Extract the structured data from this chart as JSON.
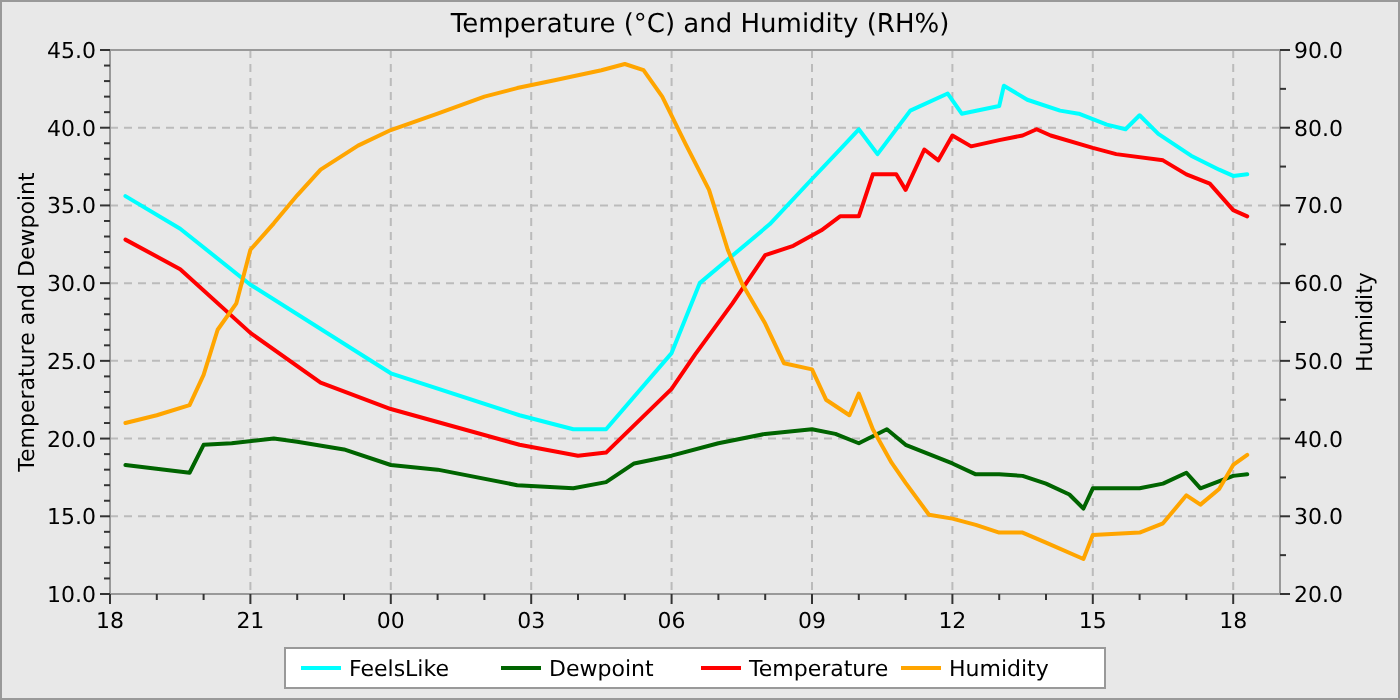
{
  "chart_data": {
    "type": "line",
    "title": "Temperature (°C) and Humidity (RH%)",
    "ylabel": "Temperature and Dewpoint",
    "y2label": "Humidity",
    "xlim": [
      18,
      43
    ],
    "xticks": [
      {
        "value": 18,
        "label": "18"
      },
      {
        "value": 19,
        "label": null
      },
      {
        "value": 20,
        "label": null
      },
      {
        "value": 21,
        "label": "21"
      },
      {
        "value": 22,
        "label": null
      },
      {
        "value": 23,
        "label": null
      },
      {
        "value": 24,
        "label": "00"
      },
      {
        "value": 25,
        "label": null
      },
      {
        "value": 26,
        "label": null
      },
      {
        "value": 27,
        "label": "03"
      },
      {
        "value": 28,
        "label": null
      },
      {
        "value": 29,
        "label": null
      },
      {
        "value": 30,
        "label": "06"
      },
      {
        "value": 31,
        "label": null
      },
      {
        "value": 32,
        "label": null
      },
      {
        "value": 33,
        "label": "09"
      },
      {
        "value": 34,
        "label": null
      },
      {
        "value": 35,
        "label": null
      },
      {
        "value": 36,
        "label": "12"
      },
      {
        "value": 37,
        "label": null
      },
      {
        "value": 38,
        "label": null
      },
      {
        "value": 39,
        "label": "15"
      },
      {
        "value": 40,
        "label": null
      },
      {
        "value": 41,
        "label": null
      },
      {
        "value": 42,
        "label": "18"
      }
    ],
    "ylim": [
      10,
      45
    ],
    "yticks": [
      {
        "value": 10,
        "label": "10.0"
      },
      {
        "value": 11,
        "label": null
      },
      {
        "value": 12,
        "label": null
      },
      {
        "value": 13,
        "label": null
      },
      {
        "value": 14,
        "label": null
      },
      {
        "value": 15,
        "label": "15.0"
      },
      {
        "value": 16,
        "label": null
      },
      {
        "value": 17,
        "label": null
      },
      {
        "value": 18,
        "label": null
      },
      {
        "value": 19,
        "label": null
      },
      {
        "value": 20,
        "label": "20.0"
      },
      {
        "value": 21,
        "label": null
      },
      {
        "value": 22,
        "label": null
      },
      {
        "value": 23,
        "label": null
      },
      {
        "value": 24,
        "label": null
      },
      {
        "value": 25,
        "label": "25.0"
      },
      {
        "value": 26,
        "label": null
      },
      {
        "value": 27,
        "label": null
      },
      {
        "value": 28,
        "label": null
      },
      {
        "value": 29,
        "label": null
      },
      {
        "value": 30,
        "label": "30.0"
      },
      {
        "value": 31,
        "label": null
      },
      {
        "value": 32,
        "label": null
      },
      {
        "value": 33,
        "label": null
      },
      {
        "value": 34,
        "label": null
      },
      {
        "value": 35,
        "label": "35.0"
      },
      {
        "value": 36,
        "label": null
      },
      {
        "value": 37,
        "label": null
      },
      {
        "value": 38,
        "label": null
      },
      {
        "value": 39,
        "label": null
      },
      {
        "value": 40,
        "label": "40.0"
      },
      {
        "value": 41,
        "label": null
      },
      {
        "value": 42,
        "label": null
      },
      {
        "value": 43,
        "label": null
      },
      {
        "value": 44,
        "label": null
      },
      {
        "value": 45,
        "label": "45.0"
      }
    ],
    "y2lim": [
      20,
      90
    ],
    "y2ticks": [
      {
        "value": 20,
        "label": "20.0"
      },
      {
        "value": 25,
        "label": null
      },
      {
        "value": 30,
        "label": "30.0"
      },
      {
        "value": 35,
        "label": null
      },
      {
        "value": 40,
        "label": "40.0"
      },
      {
        "value": 45,
        "label": null
      },
      {
        "value": 50,
        "label": "50.0"
      },
      {
        "value": 55,
        "label": null
      },
      {
        "value": 60,
        "label": "60.0"
      },
      {
        "value": 65,
        "label": null
      },
      {
        "value": 70,
        "label": "70.0"
      },
      {
        "value": 75,
        "label": null
      },
      {
        "value": 80,
        "label": "80.0"
      },
      {
        "value": 85,
        "label": null
      },
      {
        "value": 90,
        "label": "90.0"
      }
    ],
    "grid": true,
    "legend": "bottom",
    "line_style": "solid",
    "series": [
      {
        "name": "FeelsLike",
        "color": "#00ffff",
        "x": [
          18.33,
          19.5,
          21,
          24,
          26.75,
          27.9,
          28.6,
          30,
          30.6,
          32.1,
          33,
          33.6,
          34,
          34.4,
          35.1,
          35.9,
          36.2,
          37,
          37.1,
          37.6,
          38.3,
          38.7,
          39.3,
          39.7,
          40,
          40.4,
          41.1,
          41.7,
          42,
          42.3
        ],
        "values": [
          35.6,
          33.5,
          29.9,
          24.2,
          21.5,
          20.6,
          20.6,
          25.5,
          30,
          33.8,
          36.7,
          38.6,
          39.9,
          38.3,
          41.1,
          42.2,
          40.9,
          41.4,
          42.7,
          41.8,
          41.1,
          40.9,
          40.2,
          39.9,
          40.8,
          39.6,
          38.2,
          37.3,
          36.9,
          37
        ]
      },
      {
        "name": "Dewpoint",
        "color": "#006400",
        "x": [
          18.33,
          19.7,
          20,
          20.6,
          21.5,
          22,
          23,
          24,
          25,
          26.7,
          27.9,
          28.6,
          29.2,
          30,
          31,
          32,
          33,
          33.5,
          34,
          34.6,
          35,
          35.5,
          36,
          36.5,
          37,
          37.5,
          38,
          38.5,
          38.8,
          39,
          40,
          40.5,
          41,
          41.3,
          42,
          42.3
        ],
        "values": [
          18.3,
          17.8,
          19.6,
          19.7,
          20,
          19.8,
          19.3,
          18.3,
          18,
          17,
          16.8,
          17.2,
          18.4,
          18.9,
          19.7,
          20.3,
          20.6,
          20.3,
          19.7,
          20.6,
          19.6,
          19,
          18.4,
          17.7,
          17.7,
          17.6,
          17.1,
          16.4,
          15.5,
          16.8,
          16.8,
          17.1,
          17.8,
          16.8,
          17.6,
          17.7
        ]
      },
      {
        "name": "Temperature",
        "color": "#ff0000",
        "x": [
          18.33,
          19.5,
          21,
          22.5,
          24,
          26.75,
          28,
          28.6,
          30,
          30.5,
          31.3,
          32,
          32.6,
          33.2,
          33.6,
          34,
          34.3,
          34.8,
          35,
          35.4,
          35.7,
          36,
          36.4,
          37,
          37.5,
          37.8,
          38.1,
          39,
          39.5,
          40.5,
          41,
          41.5,
          42,
          42.3
        ],
        "values": [
          32.8,
          30.9,
          26.8,
          23.6,
          21.9,
          19.6,
          18.9,
          19.1,
          23.2,
          25.4,
          28.7,
          31.8,
          32.4,
          33.4,
          34.3,
          34.3,
          37,
          37,
          36,
          38.6,
          37.9,
          39.5,
          38.8,
          39.2,
          39.5,
          39.9,
          39.5,
          38.7,
          38.3,
          37.9,
          37,
          36.4,
          34.7,
          34.3
        ]
      },
      {
        "name": "Humidity",
        "color": "#ffa500",
        "axis": "y2",
        "x": [
          18.33,
          19,
          19.7,
          20,
          20.3,
          20.7,
          21,
          21.5,
          22,
          22.5,
          23.3,
          24,
          25,
          26,
          26.7,
          27.5,
          28.5,
          29,
          29.4,
          29.8,
          30.3,
          30.8,
          31.2,
          31.5,
          32,
          32.4,
          33,
          33.3,
          33.8,
          34,
          34.3,
          34.7,
          35,
          35.5,
          36,
          36.5,
          37,
          37.5,
          38,
          38.8,
          39,
          40,
          40.5,
          41,
          41.3,
          41.7,
          42,
          42.3
        ],
        "values": [
          42,
          43,
          44.3,
          48.2,
          54,
          57.4,
          64.3,
          67.7,
          71.3,
          74.6,
          77.7,
          79.7,
          81.8,
          84,
          85.1,
          86.1,
          87.4,
          88.2,
          87.4,
          84,
          77.9,
          72,
          64.3,
          60,
          54.8,
          49.7,
          48.9,
          45,
          43,
          45.8,
          41.2,
          36.9,
          34.3,
          30.2,
          29.7,
          28.9,
          27.9,
          27.9,
          26.6,
          24.5,
          27.6,
          27.9,
          29.1,
          32.7,
          31.5,
          33.5,
          36.6,
          37.9
        ]
      }
    ]
  }
}
